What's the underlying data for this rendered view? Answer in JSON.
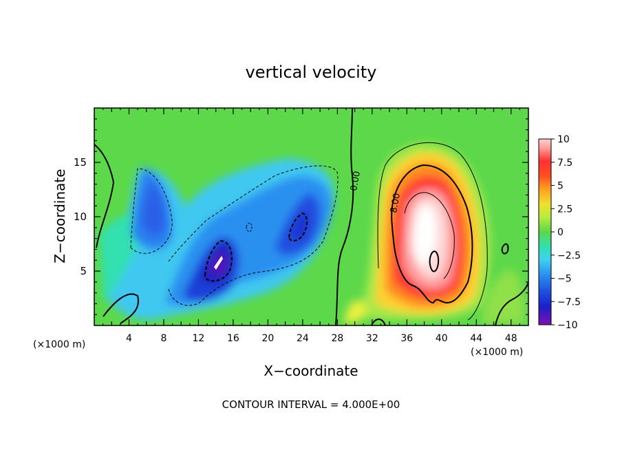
{
  "chart_data": {
    "type": "heatmap",
    "title": "vertical velocity",
    "xlabel": "X−coordinate",
    "ylabel": "Z−coordinate",
    "x_unit": "(×1000 m)",
    "x_unit_right": "(×1000 m)",
    "xlim": [
      0,
      50
    ],
    "ylim": [
      0,
      20
    ],
    "x_ticks": [
      "4",
      "8",
      "12",
      "16",
      "20",
      "24",
      "28",
      "32",
      "36",
      "40",
      "44",
      "48"
    ],
    "y_ticks": [
      "5",
      "10",
      "15"
    ],
    "footnote": "CONTOUR INTERVAL = 4.000E+00",
    "colorbar": {
      "range": [
        -10,
        10
      ],
      "ticks": [
        "10",
        "7.5",
        "5",
        "2.5",
        "0",
        "−2.5",
        "−5",
        "−7.5",
        "−10"
      ]
    },
    "contour_labels": [
      "0.00",
      "8.00"
    ],
    "features": [
      {
        "kind": "updraft",
        "x": 39,
        "z": 9,
        "peak": 10
      },
      {
        "kind": "downdraft",
        "x": 14.5,
        "z": 6,
        "peak": -10
      },
      {
        "kind": "downdraft",
        "x": 23,
        "z": 9.5,
        "peak": -8
      },
      {
        "kind": "downdraft",
        "x": 7,
        "z": 11,
        "peak": -6
      }
    ]
  },
  "colors": {
    "background": "#5cd84a",
    "positive_scale": [
      "#5cd84a",
      "#a8e84a",
      "#e8f040",
      "#ffd030",
      "#ff9a20",
      "#ff5020",
      "#ff2a2a",
      "#ff8a8a",
      "#ffc8c8",
      "#ffffff"
    ],
    "negative_scale": [
      "#5cd84a",
      "#30e0b0",
      "#40c8f0",
      "#2aa0f0",
      "#2a60e8",
      "#1a30d8",
      "#3010b0",
      "#7a10b0",
      "#ffffff"
    ]
  }
}
